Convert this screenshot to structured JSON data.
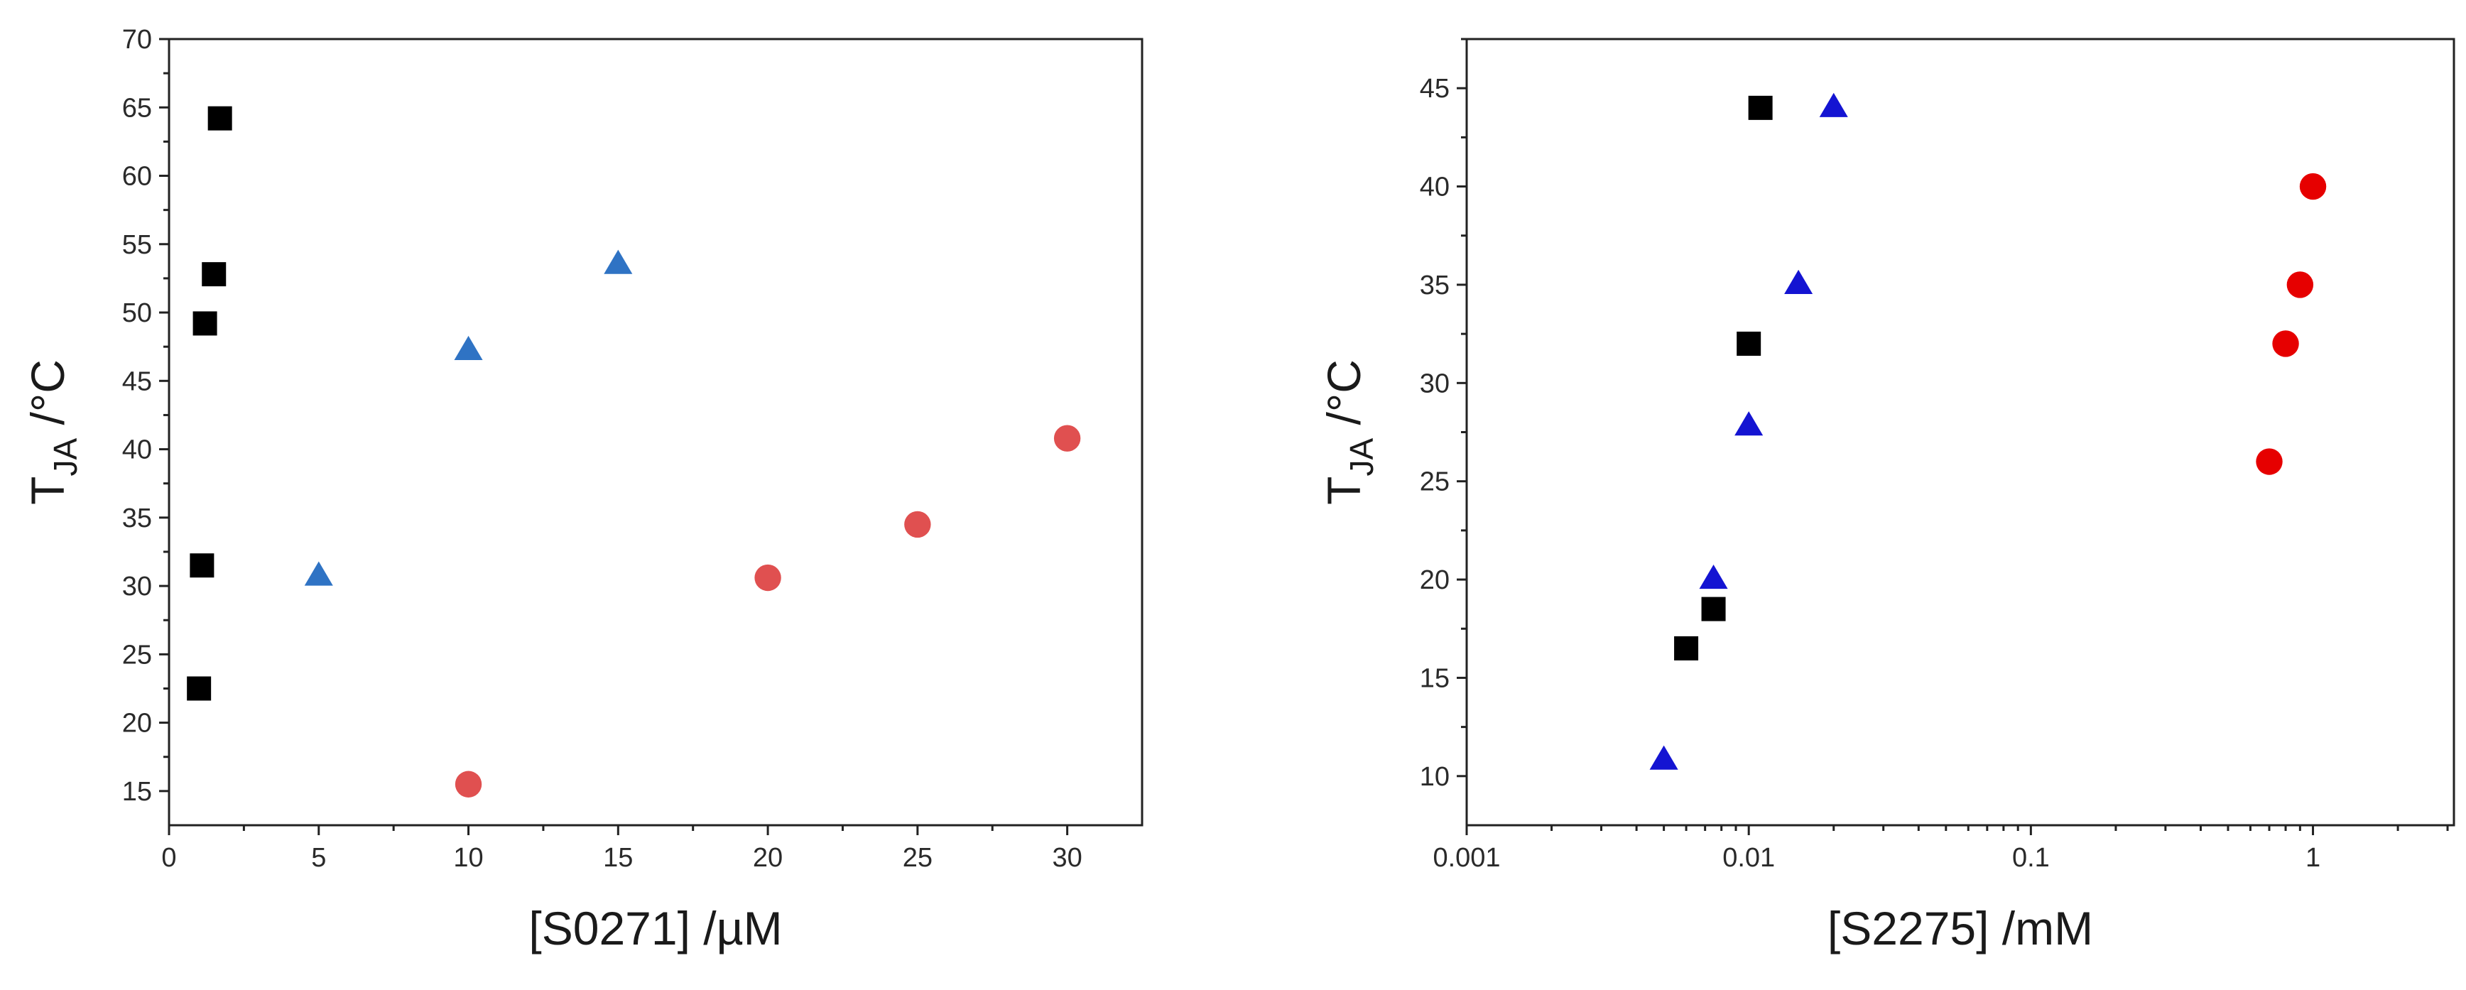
{
  "chart_data": [
    {
      "type": "scatter",
      "title": "",
      "xlabel": "[S0271] /µM",
      "ylabel": {
        "main": "T",
        "subscript": "JA",
        "suffix": " /°C"
      },
      "xscale": "linear",
      "xlim": [
        0,
        32.5
      ],
      "ylim": [
        12.5,
        70
      ],
      "xticks": [
        0,
        5,
        10,
        15,
        20,
        25,
        30
      ],
      "xtick_labels": [
        "0",
        "5",
        "10",
        "15",
        "20",
        "25",
        "30"
      ],
      "yticks": [
        15,
        20,
        25,
        30,
        35,
        40,
        45,
        50,
        55,
        60,
        65,
        70
      ],
      "ytick_labels": [
        "15",
        "20",
        "25",
        "30",
        "35",
        "40",
        "45",
        "50",
        "55",
        "60",
        "65",
        "70"
      ],
      "grid": false,
      "legend": null,
      "series": [
        {
          "name": "black squares",
          "marker": "square",
          "color": "#000000",
          "x": [
            1.0,
            1.1,
            1.2,
            1.5,
            1.7
          ],
          "y": [
            22.5,
            31.5,
            49.2,
            52.8,
            64.2
          ]
        },
        {
          "name": "blue triangles",
          "marker": "triangle",
          "color": "#2f73c4",
          "x": [
            5,
            10,
            15
          ],
          "y": [
            30.7,
            47.2,
            53.5
          ]
        },
        {
          "name": "red circles",
          "marker": "circle",
          "color": "#e05050",
          "x": [
            10,
            20,
            25,
            30
          ],
          "y": [
            15.5,
            30.6,
            34.5,
            40.8
          ]
        }
      ]
    },
    {
      "type": "scatter",
      "title": "",
      "xlabel": "[S2275] /mM",
      "ylabel": {
        "main": "T",
        "subscript": "JA",
        "suffix": " /°C"
      },
      "xscale": "log",
      "xlim": [
        0.001,
        3.16
      ],
      "ylim": [
        7.5,
        47.5
      ],
      "xticks": [
        0.001,
        0.01,
        0.1,
        1
      ],
      "xtick_labels": [
        "0.001",
        "0.01",
        "0.1",
        "1"
      ],
      "yticks": [
        10,
        15,
        20,
        25,
        30,
        35,
        40,
        45
      ],
      "ytick_labels": [
        "10",
        "15",
        "20",
        "25",
        "30",
        "35",
        "40",
        "45"
      ],
      "grid": false,
      "legend": null,
      "series": [
        {
          "name": "black squares",
          "marker": "square",
          "color": "#000000",
          "x": [
            0.006,
            0.0075,
            0.01,
            0.011
          ],
          "y": [
            16.5,
            18.5,
            32.0,
            44.0
          ]
        },
        {
          "name": "blue triangles",
          "marker": "triangle",
          "color": "#1414d2",
          "x": [
            0.005,
            0.0075,
            0.01,
            0.015,
            0.02
          ],
          "y": [
            10.8,
            20.0,
            27.8,
            35.0,
            44.0
          ]
        },
        {
          "name": "red circles",
          "marker": "circle",
          "color": "#e60000",
          "x": [
            0.7,
            0.8,
            0.9,
            1.0
          ],
          "y": [
            26.0,
            32.0,
            35.0,
            40.0
          ]
        }
      ]
    }
  ]
}
